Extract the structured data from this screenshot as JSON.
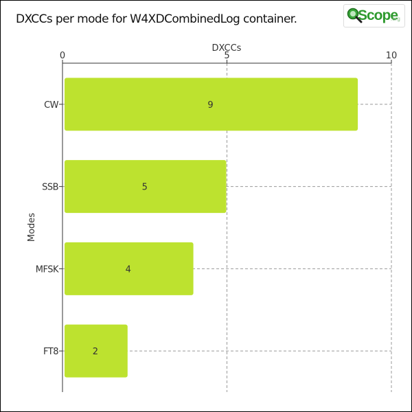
{
  "title": "DXCCs per mode for W4XDCombinedLog container.",
  "logo": {
    "main_text": "Scope",
    "sub_text": ".org"
  },
  "colors": {
    "bar": "#bde22f",
    "axis": "#333333",
    "grid": "#999999",
    "text": "#333333"
  },
  "chart_data": {
    "type": "bar",
    "orientation": "horizontal",
    "categories": [
      "CW",
      "SSB",
      "MFSK",
      "FT8"
    ],
    "values": [
      9,
      5,
      4,
      2
    ],
    "xlabel": "DXCCs",
    "ylabel": "Modes",
    "xlim": [
      0,
      10
    ],
    "xticks": [
      0,
      5,
      10
    ],
    "grid": true,
    "data_labels": true
  }
}
